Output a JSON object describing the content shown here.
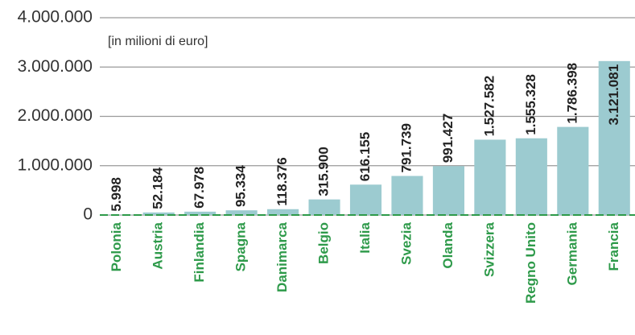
{
  "chart_data": {
    "type": "bar",
    "annotation": "[in milioni di euro]",
    "categories": [
      "Polonia",
      "Austria",
      "Finlandia",
      "Spagna",
      "Danimarca",
      "Belgio",
      "Italia",
      "Svezia",
      "Olanda",
      "Svizzera",
      "Regno Unito",
      "Germania",
      "Francia"
    ],
    "values": [
      5998,
      52184,
      67978,
      95334,
      118376,
      315900,
      616155,
      791739,
      991427,
      1527582,
      1555328,
      1786398,
      3121081
    ],
    "value_labels": [
      "5.998",
      "52.184",
      "67.978",
      "95.334",
      "118.376",
      "315.900",
      "616.155",
      "791.739",
      "991.427",
      "1.527.582",
      "1.555.328",
      "1.786.398",
      "3.121.081"
    ],
    "color": "#9ccbd0",
    "ylim": [
      0,
      4000000
    ],
    "yticks": [
      0,
      {
        "value": 1000000,
        "label": "1.000.000"
      },
      {
        "value": 2000000,
        "label": "2.000.000"
      },
      {
        "value": 3000000,
        "label": "3.000.000"
      },
      {
        "value": 4000000,
        "label": "4.000.000"
      }
    ],
    "grid": true
  }
}
